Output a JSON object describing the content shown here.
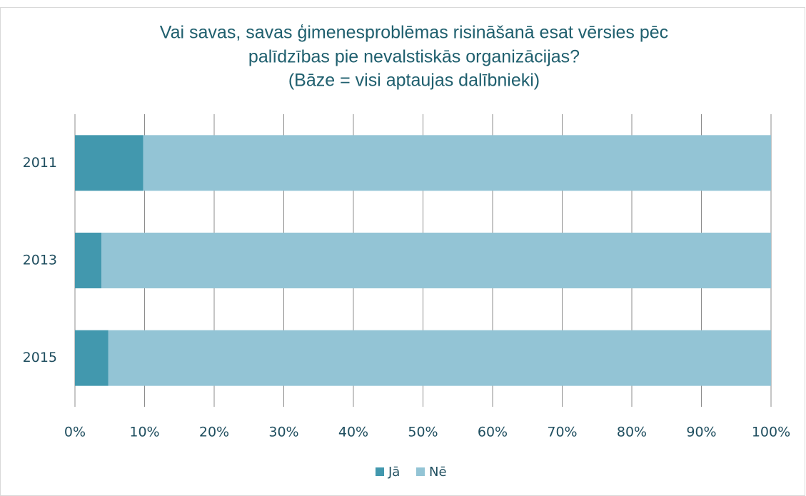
{
  "chart_data": {
    "type": "stacked_bar_horizontal",
    "title": [
      "Vai savas, savas ģimenesproblēmas risināšanā esat vērsies pēc",
      "palīdzības pie nevalstiskās organizācijas?",
      "(Bāze = visi aptaujas dalībnieki)"
    ],
    "categories": [
      "2011",
      "2013",
      "2015"
    ],
    "series": [
      {
        "name": "Jā",
        "color": "#4298ae",
        "values": [
          9.8,
          3.8,
          4.8
        ]
      },
      {
        "name": "Nē",
        "color": "#93c4d5",
        "values": [
          90.2,
          96.2,
          95.2
        ]
      }
    ],
    "xlim": [
      0,
      100
    ],
    "xticks": [
      {
        "value": 0,
        "label": "0%"
      },
      {
        "value": 10,
        "label": "10%"
      },
      {
        "value": 20,
        "label": "20%"
      },
      {
        "value": 30,
        "label": "30%"
      },
      {
        "value": 40,
        "label": "40%"
      },
      {
        "value": 50,
        "label": "50%"
      },
      {
        "value": 60,
        "label": "60%"
      },
      {
        "value": 70,
        "label": "70%"
      },
      {
        "value": 80,
        "label": "80%"
      },
      {
        "value": 90,
        "label": "90%"
      },
      {
        "value": 100,
        "label": "100%"
      }
    ],
    "grid": true,
    "legend": "bottom"
  }
}
